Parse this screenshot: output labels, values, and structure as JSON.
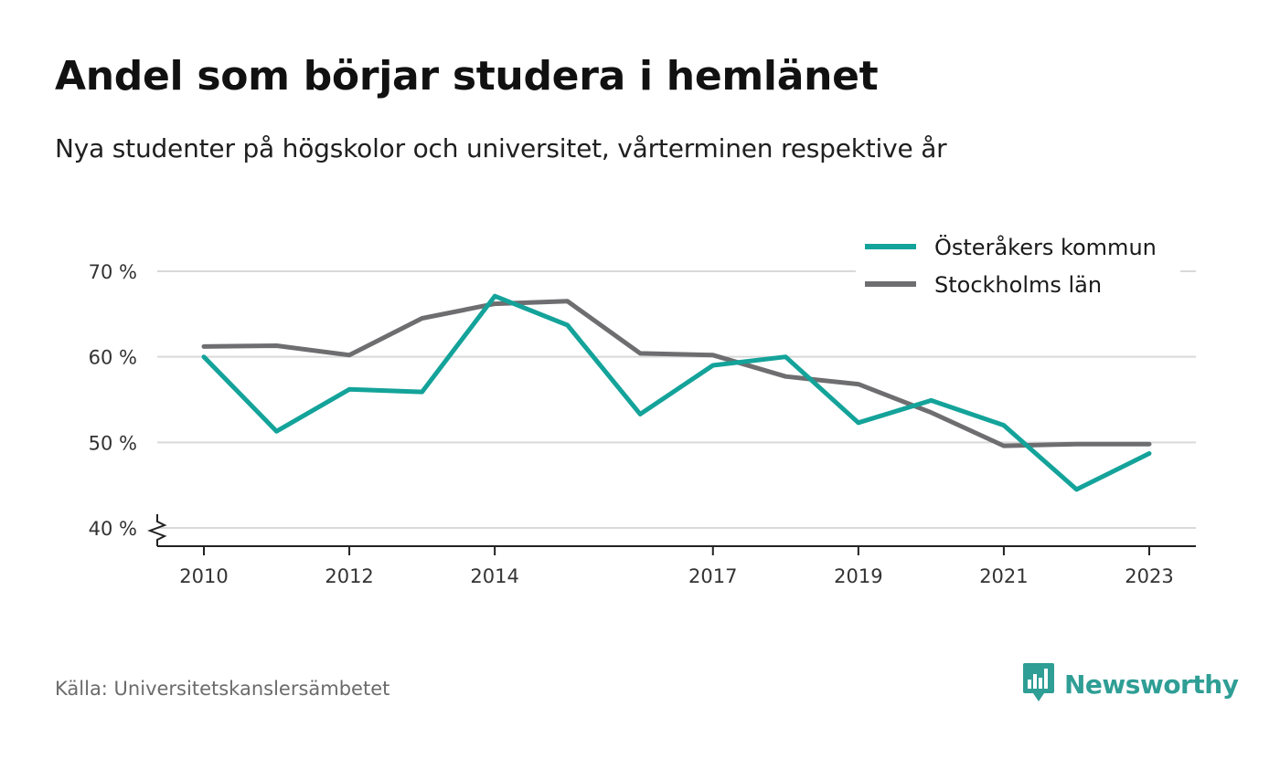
{
  "title": "Andel som börjar studera i hemlänet",
  "subtitle": "Nya studenter på högskolor och universitet, vårterminen respektive år",
  "source": "Källa: Universitetskanslersämbetet",
  "logo": {
    "text": "Newsworthy",
    "icon": "newsworthy-chart-bubble-icon",
    "color": "#2f9e95"
  },
  "chart_data": {
    "type": "line",
    "x": [
      2010,
      2011,
      2012,
      2013,
      2014,
      2015,
      2016,
      2017,
      2018,
      2019,
      2020,
      2021,
      2022,
      2023
    ],
    "x_tick_values": [
      2010,
      2012,
      2014,
      2017,
      2019,
      2021,
      2023
    ],
    "x_tick_labels": [
      "2010",
      "2012",
      "2014",
      "2017",
      "2019",
      "2021",
      "2023"
    ],
    "y_tick_values": [
      40,
      50,
      60,
      70
    ],
    "y_tick_labels": [
      "40 %",
      "50 %",
      "60 %",
      "70 %"
    ],
    "ylim": [
      40,
      70
    ],
    "y_axis_break": true,
    "grid": true,
    "legend_position": "top-right",
    "series": [
      {
        "name": "Österåkers kommun",
        "color": "#14a39a",
        "values": [
          60.0,
          51.3,
          56.2,
          55.9,
          67.1,
          63.7,
          53.3,
          59.0,
          60.0,
          52.3,
          54.9,
          52.0,
          44.5,
          48.7
        ]
      },
      {
        "name": "Stockholms län",
        "color": "#6e6e70",
        "values": [
          61.2,
          61.3,
          60.2,
          64.5,
          66.2,
          66.5,
          60.4,
          60.2,
          57.7,
          56.8,
          53.5,
          49.6,
          49.8,
          49.8
        ]
      }
    ]
  }
}
